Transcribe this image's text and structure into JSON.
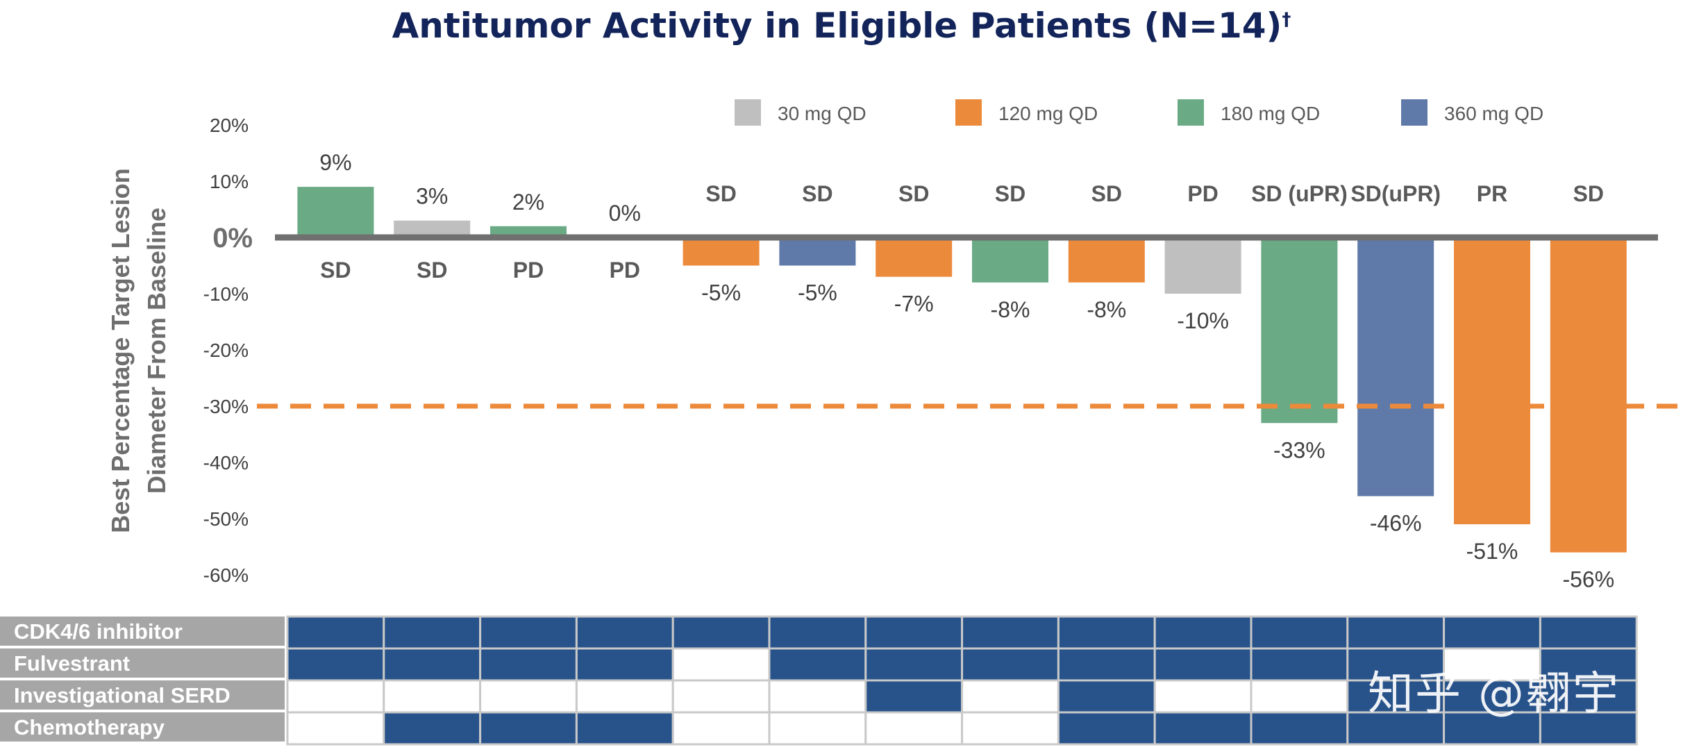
{
  "title": "Antitumor Activity in Eligible Patients (N=14)",
  "title_mark": "†",
  "watermark": "知乎 @翱宇",
  "colors": {
    "30 mg QD": "#bfbfbf",
    "120 mg QD": "#ec8a3c",
    "180 mg QD": "#6aaa84",
    "360 mg QD": "#5f7aa8",
    "axis": "#707070",
    "threshold": "#ec8a3c",
    "table_fill": "#27528a",
    "table_label_bg": "#a6a6a6",
    "table_grid": "#c9c9c9"
  },
  "chart_data": {
    "type": "bar",
    "title": "Antitumor Activity in Eligible Patients (N=14)",
    "ylabel": "Best Percentage Target Lesion Diameter From Baseline",
    "ylim": [
      -60,
      20
    ],
    "yticks": [
      "20%",
      "10%",
      "0%",
      "-10%",
      "-20%",
      "-30%",
      "-40%",
      "-50%",
      "-60%"
    ],
    "ytick_values": [
      20,
      10,
      0,
      -10,
      -20,
      -30,
      -40,
      -50,
      -60
    ],
    "threshold": -30,
    "legend": [
      "30 mg QD",
      "120 mg QD",
      "180 mg QD",
      "360 mg QD"
    ],
    "legend_position": "top",
    "values": [
      9,
      3,
      2,
      0,
      -5,
      -5,
      -7,
      -8,
      -8,
      -10,
      -33,
      -46,
      -51,
      -56
    ],
    "value_labels": [
      "9%",
      "3%",
      "2%",
      "0%",
      "-5%",
      "-5%",
      "-7%",
      "-8%",
      "-8%",
      "-10%",
      "-33%",
      "-46%",
      "-51%",
      "-56%"
    ],
    "doses": [
      "180 mg QD",
      "30 mg QD",
      "180 mg QD",
      "30 mg QD",
      "120 mg QD",
      "360 mg QD",
      "120 mg QD",
      "180 mg QD",
      "120 mg QD",
      "30 mg QD",
      "180 mg QD",
      "360 mg QD",
      "120 mg QD",
      "120 mg QD"
    ],
    "responses": [
      "SD",
      "SD",
      "PD",
      "PD",
      "SD",
      "SD",
      "SD",
      "SD",
      "SD",
      "PD",
      "SD (uPR)",
      "SD(uPR)",
      "PR",
      "SD"
    ]
  },
  "prior_therapy": {
    "rows": [
      {
        "label": "CDK4/6 inhibitor",
        "cells": [
          1,
          1,
          1,
          1,
          1,
          1,
          1,
          1,
          1,
          1,
          1,
          1,
          1,
          1
        ]
      },
      {
        "label": "Fulvestrant",
        "cells": [
          1,
          1,
          1,
          1,
          0,
          1,
          1,
          1,
          1,
          1,
          1,
          1,
          0,
          1
        ]
      },
      {
        "label": "Investigational SERD",
        "cells": [
          0,
          0,
          0,
          0,
          0,
          0,
          1,
          0,
          1,
          0,
          0,
          1,
          1,
          1
        ]
      },
      {
        "label": "Chemotherapy",
        "cells": [
          0,
          1,
          1,
          1,
          0,
          0,
          0,
          0,
          1,
          1,
          1,
          1,
          1,
          1
        ]
      }
    ]
  }
}
